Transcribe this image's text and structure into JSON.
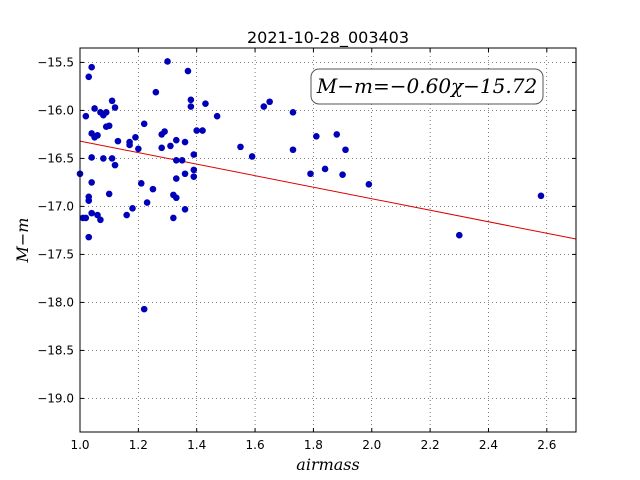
{
  "chart_data": {
    "type": "scatter",
    "title": "2021-10-28_003403",
    "xlabel": "airmass",
    "ylabel": "M−m",
    "xlim": [
      1.0,
      2.7
    ],
    "ylim": [
      -19.35,
      -15.35
    ],
    "y_inverted": true,
    "grid": true,
    "xticks": [
      1.0,
      1.2,
      1.4,
      1.6,
      1.8,
      2.0,
      2.2,
      2.4,
      2.6
    ],
    "xtick_labels": [
      "1.0",
      "1.2",
      "1.4",
      "1.6",
      "1.8",
      "2.0",
      "2.2",
      "2.4",
      "2.6"
    ],
    "yticks": [
      -15.5,
      -16.0,
      -16.5,
      -17.0,
      -17.5,
      -18.0,
      -18.5,
      -19.0
    ],
    "ytick_labels": [
      "−15.5",
      "−16.0",
      "−16.5",
      "−17.0",
      "−17.5",
      "−18.0",
      "−18.5",
      "−19.0"
    ],
    "annotation": "M−m=−0.60χ−15.72",
    "annotation_position": "top-right",
    "fit": {
      "slope": -0.6,
      "intercept": -15.72,
      "color": "#dd0000"
    },
    "series": [
      {
        "color": "#0000bb",
        "points": [
          [
            1.0,
            -16.66
          ],
          [
            1.01,
            -17.12
          ],
          [
            1.02,
            -16.06
          ],
          [
            1.02,
            -17.12
          ],
          [
            1.03,
            -16.9
          ],
          [
            1.03,
            -16.94
          ],
          [
            1.03,
            -17.32
          ],
          [
            1.03,
            -15.65
          ],
          [
            1.04,
            -15.55
          ],
          [
            1.04,
            -16.24
          ],
          [
            1.04,
            -16.49
          ],
          [
            1.04,
            -16.75
          ],
          [
            1.04,
            -17.07
          ],
          [
            1.05,
            -15.98
          ],
          [
            1.05,
            -16.28
          ],
          [
            1.06,
            -16.26
          ],
          [
            1.06,
            -17.09
          ],
          [
            1.07,
            -16.02
          ],
          [
            1.07,
            -17.14
          ],
          [
            1.08,
            -16.05
          ],
          [
            1.08,
            -16.5
          ],
          [
            1.09,
            -16.17
          ],
          [
            1.09,
            -16.02
          ],
          [
            1.1,
            -16.16
          ],
          [
            1.1,
            -16.87
          ],
          [
            1.11,
            -16.5
          ],
          [
            1.11,
            -15.9
          ],
          [
            1.12,
            -16.57
          ],
          [
            1.12,
            -15.97
          ],
          [
            1.13,
            -16.32
          ],
          [
            1.16,
            -17.09
          ],
          [
            1.17,
            -16.33
          ],
          [
            1.17,
            -16.36
          ],
          [
            1.18,
            -17.02
          ],
          [
            1.19,
            -16.28
          ],
          [
            1.2,
            -16.4
          ],
          [
            1.21,
            -16.76
          ],
          [
            1.22,
            -16.14
          ],
          [
            1.22,
            -18.07
          ],
          [
            1.23,
            -16.96
          ],
          [
            1.25,
            -16.82
          ],
          [
            1.26,
            -15.81
          ],
          [
            1.28,
            -16.25
          ],
          [
            1.28,
            -16.39
          ],
          [
            1.29,
            -16.22
          ],
          [
            1.3,
            -15.49
          ],
          [
            1.31,
            -16.37
          ],
          [
            1.32,
            -16.88
          ],
          [
            1.32,
            -17.12
          ],
          [
            1.33,
            -16.31
          ],
          [
            1.33,
            -16.52
          ],
          [
            1.33,
            -16.71
          ],
          [
            1.33,
            -16.91
          ],
          [
            1.35,
            -16.52
          ],
          [
            1.36,
            -16.66
          ],
          [
            1.36,
            -17.03
          ],
          [
            1.36,
            -16.33
          ],
          [
            1.37,
            -15.59
          ],
          [
            1.38,
            -15.89
          ],
          [
            1.38,
            -15.96
          ],
          [
            1.39,
            -16.46
          ],
          [
            1.39,
            -16.62
          ],
          [
            1.39,
            -16.69
          ],
          [
            1.4,
            -16.21
          ],
          [
            1.42,
            -16.21
          ],
          [
            1.43,
            -15.93
          ],
          [
            1.47,
            -16.06
          ],
          [
            1.55,
            -16.38
          ],
          [
            1.59,
            -16.48
          ],
          [
            1.63,
            -15.96
          ],
          [
            1.65,
            -15.91
          ],
          [
            1.73,
            -16.02
          ],
          [
            1.73,
            -16.41
          ],
          [
            1.79,
            -16.66
          ],
          [
            1.81,
            -16.27
          ],
          [
            1.84,
            -16.61
          ],
          [
            1.88,
            -16.25
          ],
          [
            1.9,
            -16.67
          ],
          [
            1.91,
            -16.41
          ],
          [
            1.99,
            -16.77
          ],
          [
            2.3,
            -17.3
          ],
          [
            2.58,
            -16.89
          ]
        ]
      }
    ]
  }
}
